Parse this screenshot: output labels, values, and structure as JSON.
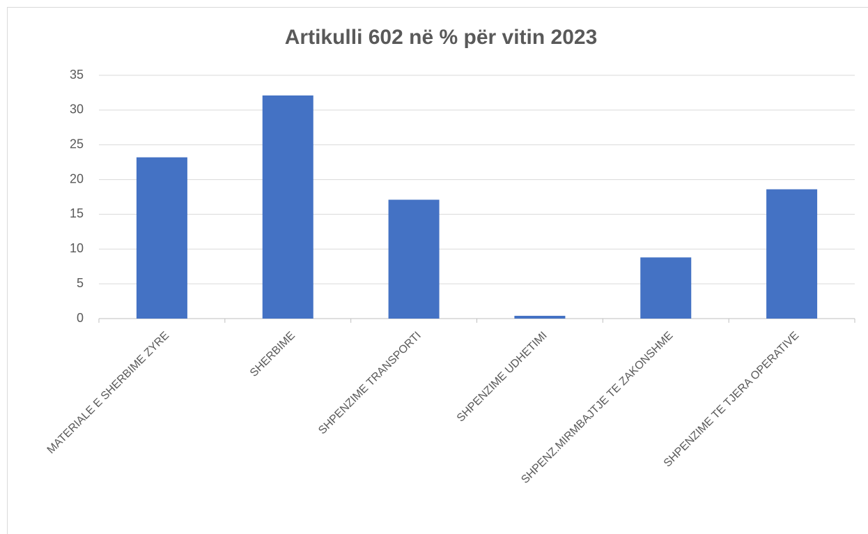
{
  "chart_data": {
    "type": "bar",
    "title": "Artikulli 602 në % për vitin 2023",
    "categories": [
      "MATERIALE E SHERBIME ZYRE",
      "SHERBIME",
      "SHPENZIME TRANSPORTI",
      "SHPENZIME UDHETIMI",
      "SHPENZ.MIRMBAJTJE TE ZAKONSHME",
      "SHPENZIME TE TJERA OPERATIVE"
    ],
    "values": [
      23.2,
      32.1,
      17.1,
      0.4,
      8.8,
      18.6
    ],
    "color": "#4472c4",
    "ylim": [
      0,
      35
    ],
    "yticks": [
      0,
      5,
      10,
      15,
      20,
      25,
      30,
      35
    ],
    "grid": true
  }
}
